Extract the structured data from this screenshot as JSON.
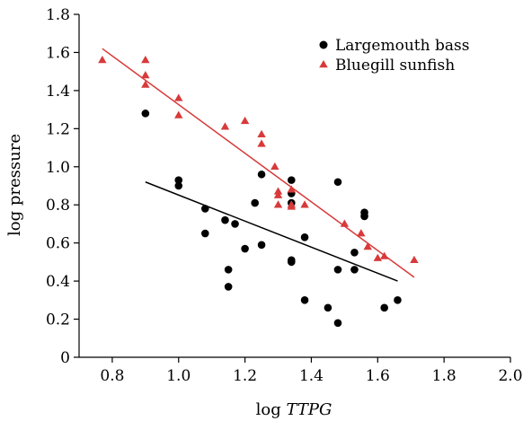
{
  "chart_data": {
    "type": "scatter",
    "xlabel_prefix": "log ",
    "xlabel_italic": "TTPG",
    "ylabel": "log pressure",
    "xlim": [
      0.7,
      2.0
    ],
    "ylim": [
      0,
      1.8
    ],
    "xticks": [
      "0.8",
      "1.0",
      "1.2",
      "1.4",
      "1.6",
      "1.8",
      "2.0"
    ],
    "yticks": [
      "0",
      "0.2",
      "0.4",
      "0.6",
      "0.8",
      "1.0",
      "1.2",
      "1.4",
      "1.6",
      "1.8"
    ],
    "legend_position": "top-right",
    "series": [
      {
        "name": "Largemouth bass",
        "marker": "circle",
        "color": "#000000",
        "points": [
          [
            0.9,
            1.28
          ],
          [
            1.0,
            0.93
          ],
          [
            1.0,
            0.9
          ],
          [
            1.08,
            0.78
          ],
          [
            1.08,
            0.65
          ],
          [
            1.14,
            0.72
          ],
          [
            1.17,
            0.7
          ],
          [
            1.2,
            0.57
          ],
          [
            1.15,
            0.46
          ],
          [
            1.15,
            0.37
          ],
          [
            1.23,
            0.81
          ],
          [
            1.25,
            0.96
          ],
          [
            1.25,
            0.59
          ],
          [
            1.34,
            0.93
          ],
          [
            1.34,
            0.86
          ],
          [
            1.34,
            0.81
          ],
          [
            1.34,
            0.51
          ],
          [
            1.34,
            0.5
          ],
          [
            1.38,
            0.63
          ],
          [
            1.38,
            0.3
          ],
          [
            1.45,
            0.26
          ],
          [
            1.48,
            0.92
          ],
          [
            1.48,
            0.46
          ],
          [
            1.48,
            0.18
          ],
          [
            1.53,
            0.55
          ],
          [
            1.53,
            0.46
          ],
          [
            1.56,
            0.76
          ],
          [
            1.56,
            0.74
          ],
          [
            1.62,
            0.26
          ],
          [
            1.66,
            0.3
          ]
        ],
        "fit": [
          [
            0.9,
            0.92
          ],
          [
            1.66,
            0.4
          ]
        ]
      },
      {
        "name": "Bluegill sunfish",
        "marker": "triangle",
        "color": "#d83a3a",
        "points": [
          [
            0.77,
            1.56
          ],
          [
            0.9,
            1.56
          ],
          [
            0.9,
            1.48
          ],
          [
            0.9,
            1.43
          ],
          [
            1.0,
            1.36
          ],
          [
            1.0,
            1.27
          ],
          [
            1.14,
            1.21
          ],
          [
            1.2,
            1.24
          ],
          [
            1.25,
            1.17
          ],
          [
            1.25,
            1.12
          ],
          [
            1.29,
            1.0
          ],
          [
            1.3,
            0.87
          ],
          [
            1.3,
            0.85
          ],
          [
            1.3,
            0.8
          ],
          [
            1.34,
            0.88
          ],
          [
            1.34,
            0.8
          ],
          [
            1.34,
            0.79
          ],
          [
            1.38,
            0.8
          ],
          [
            1.5,
            0.7
          ],
          [
            1.55,
            0.65
          ],
          [
            1.57,
            0.58
          ],
          [
            1.6,
            0.52
          ],
          [
            1.62,
            0.53
          ],
          [
            1.71,
            0.51
          ]
        ],
        "fit": [
          [
            0.77,
            1.62
          ],
          [
            1.71,
            0.42
          ]
        ]
      }
    ]
  }
}
